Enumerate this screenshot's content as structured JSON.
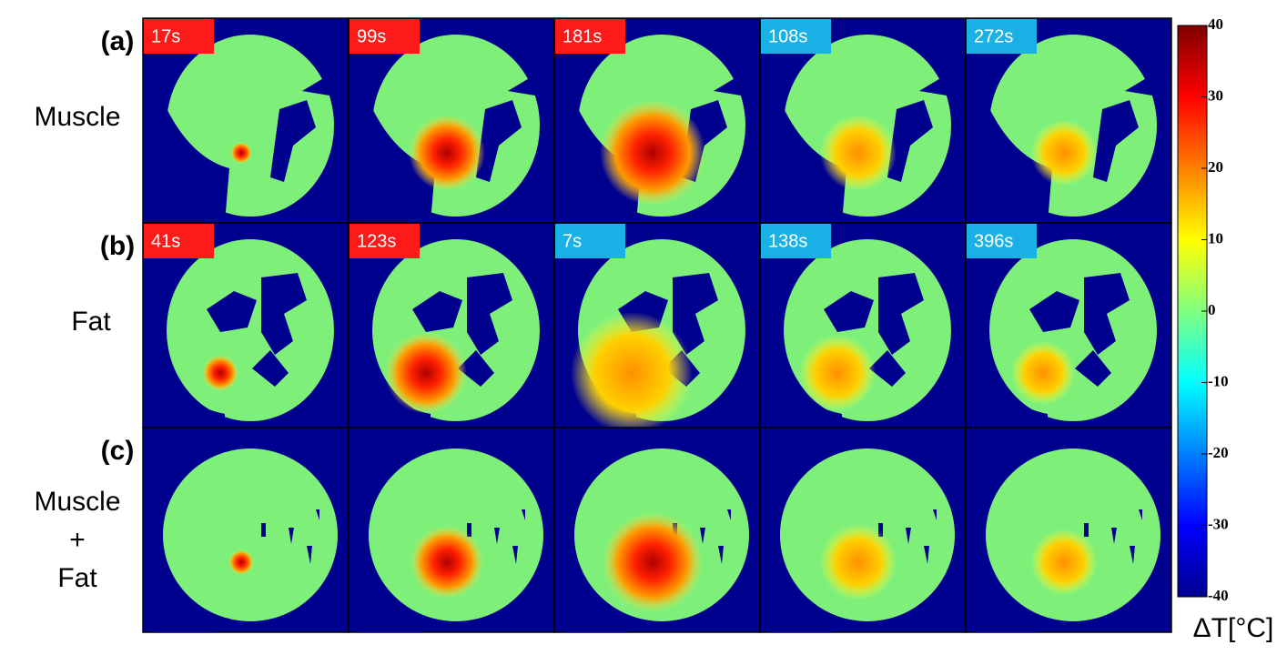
{
  "rows": [
    {
      "tag": "(a)",
      "name_lines": [
        "Muscle"
      ],
      "panels": [
        {
          "time": "17s",
          "label_color": "#ff1a1a"
        },
        {
          "time": "99s",
          "label_color": "#ff1a1a"
        },
        {
          "time": "181s",
          "label_color": "#ff1a1a"
        },
        {
          "time": "108s",
          "label_color": "#1ab2e6"
        },
        {
          "time": "272s",
          "label_color": "#1ab2e6"
        }
      ]
    },
    {
      "tag": "(b)",
      "name_lines": [
        "Fat"
      ],
      "panels": [
        {
          "time": "41s",
          "label_color": "#ff1a1a"
        },
        {
          "time": "123s",
          "label_color": "#ff1a1a"
        },
        {
          "time": "7s",
          "label_color": "#1ab2e6"
        },
        {
          "time": "138s",
          "label_color": "#1ab2e6"
        },
        {
          "time": "396s",
          "label_color": "#1ab2e6"
        }
      ]
    },
    {
      "tag": "(c)",
      "name_lines": [
        "Muscle",
        "+",
        "Fat"
      ],
      "panels": [
        {},
        {},
        {},
        {},
        {}
      ]
    }
  ],
  "colorbar": {
    "range": [
      -40,
      40
    ],
    "ticks": [
      40,
      30,
      20,
      10,
      0,
      -10,
      -20,
      -30,
      -40
    ],
    "label": "ΔT[°C]"
  }
}
